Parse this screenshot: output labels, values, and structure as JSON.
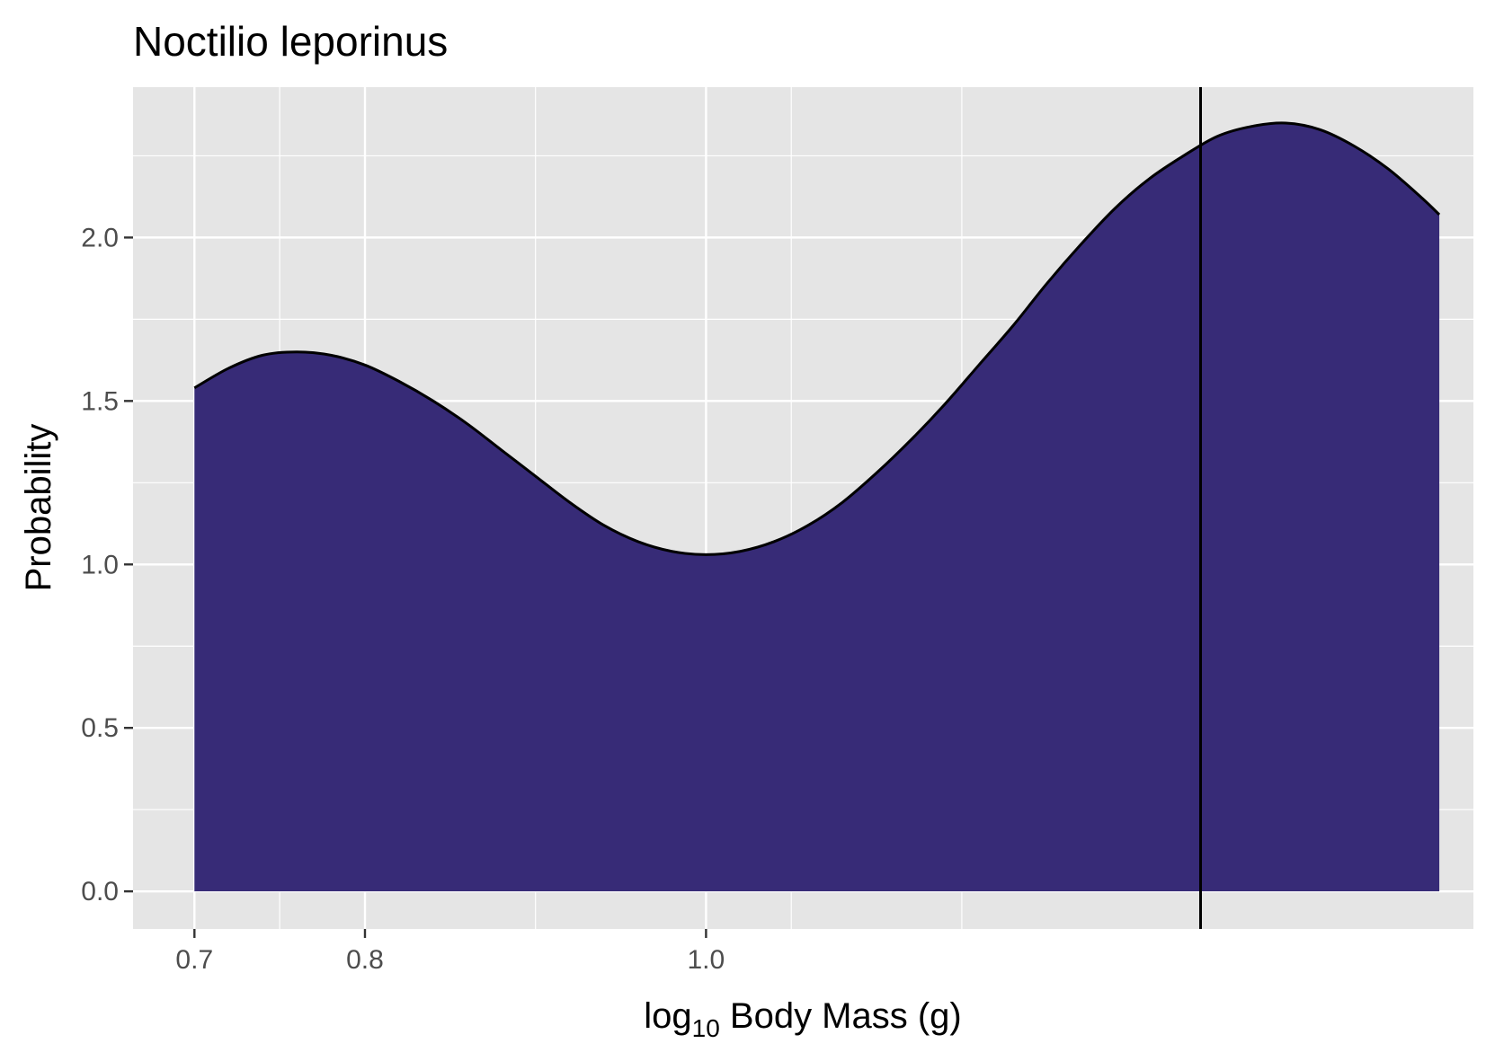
{
  "chart_data": {
    "type": "area",
    "title": "Noctilio leporinus",
    "xlabel": "log",
    "xlabel_subscript": "10",
    "xlabel_rest": " Body Mass (g)",
    "ylabel": "Probability",
    "xlim": [
      0.664,
      1.45
    ],
    "ylim": [
      -0.115,
      2.46
    ],
    "x_ticks": [
      0.7,
      0.8,
      1.0
    ],
    "x_tick_labels": [
      "0.7",
      "0.8",
      "1.0"
    ],
    "x_minor_grid": [
      0.75,
      0.9,
      1.05,
      1.15
    ],
    "y_ticks": [
      0.0,
      0.5,
      1.0,
      1.5,
      2.0
    ],
    "y_tick_labels": [
      "0.0",
      "0.5",
      "1.0",
      "1.5",
      "2.0"
    ],
    "y_minor_grid": [
      0.25,
      0.75,
      1.25,
      1.75,
      2.25
    ],
    "grid": true,
    "vline_x": 1.29,
    "series": [
      {
        "fill": "#372b77",
        "line": "#000000",
        "x": [
          0.7,
          0.72,
          0.74,
          0.76,
          0.78,
          0.8,
          0.82,
          0.84,
          0.86,
          0.88,
          0.9,
          0.92,
          0.94,
          0.96,
          0.98,
          1.0,
          1.02,
          1.04,
          1.06,
          1.08,
          1.1,
          1.12,
          1.14,
          1.16,
          1.18,
          1.2,
          1.22,
          1.24,
          1.26,
          1.28,
          1.3,
          1.32,
          1.34,
          1.36,
          1.38,
          1.4,
          1.42,
          1.43
        ],
        "y": [
          1.54,
          1.6,
          1.64,
          1.65,
          1.64,
          1.61,
          1.56,
          1.5,
          1.43,
          1.35,
          1.27,
          1.19,
          1.12,
          1.07,
          1.04,
          1.03,
          1.04,
          1.07,
          1.12,
          1.19,
          1.28,
          1.38,
          1.49,
          1.61,
          1.73,
          1.86,
          1.98,
          2.09,
          2.18,
          2.25,
          2.31,
          2.34,
          2.35,
          2.33,
          2.28,
          2.21,
          2.12,
          2.07
        ]
      }
    ]
  }
}
